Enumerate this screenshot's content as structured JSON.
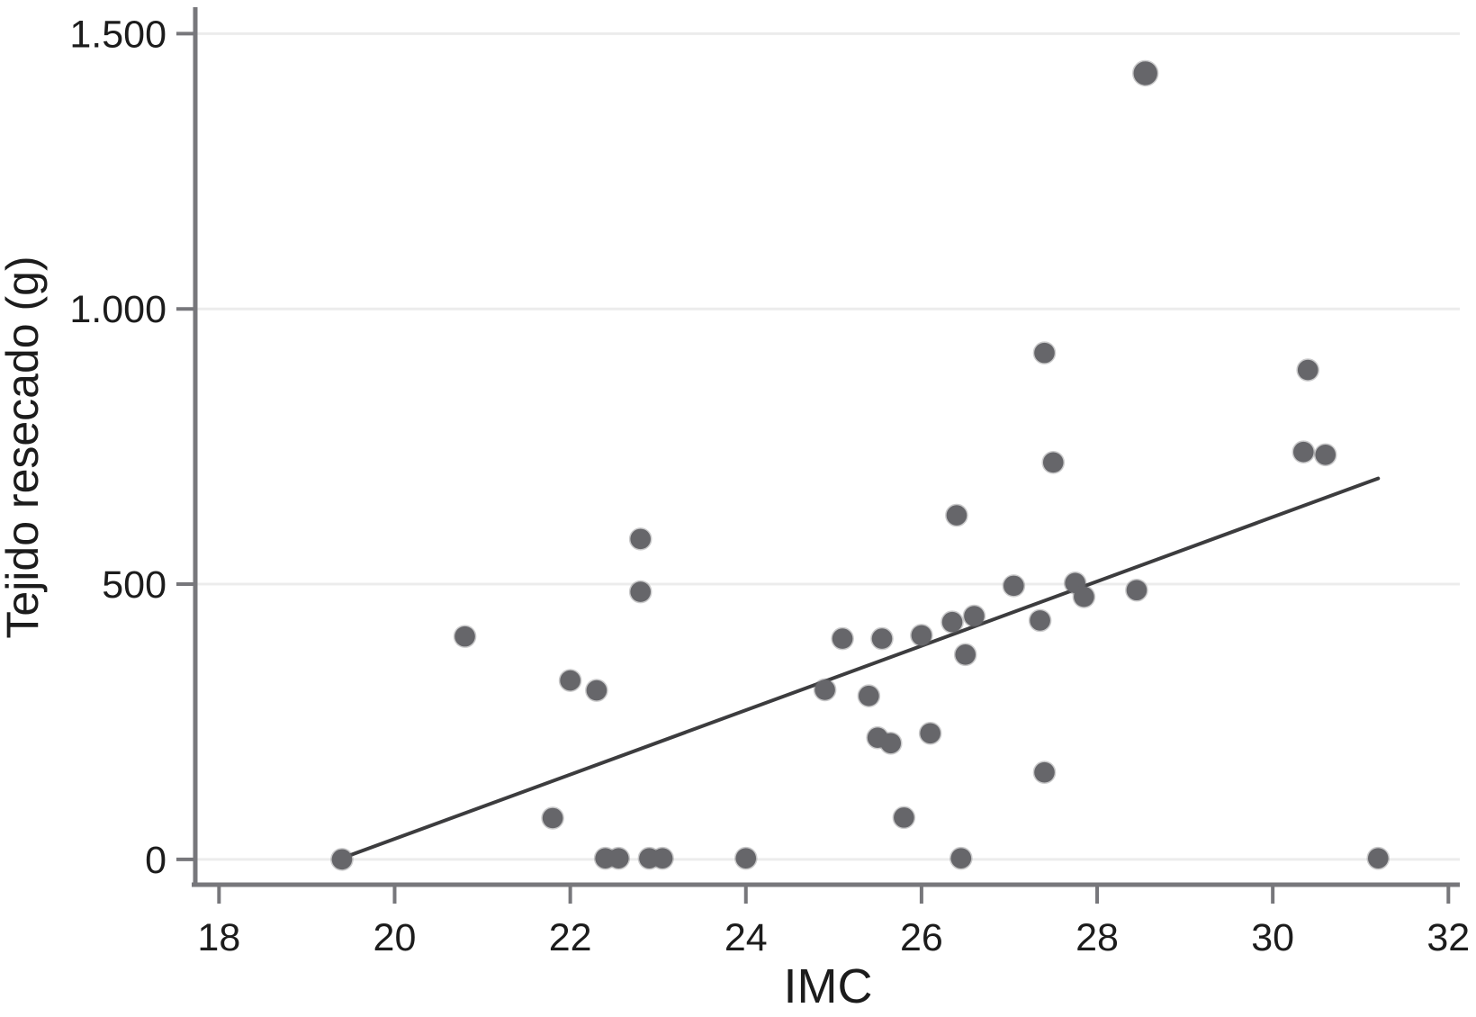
{
  "chart_data": {
    "type": "scatter",
    "title": "",
    "xlabel": "IMC",
    "ylabel": "Tejido resecado (g)",
    "xlim": [
      17.73,
      32.13
    ],
    "ylim": [
      -46,
      1548
    ],
    "grid": "horizontal",
    "legend": "none",
    "x_ticks": [
      {
        "value": 18,
        "label": "18"
      },
      {
        "value": 20,
        "label": "20"
      },
      {
        "value": 22,
        "label": "22"
      },
      {
        "value": 24,
        "label": "24"
      },
      {
        "value": 26,
        "label": "26"
      },
      {
        "value": 28,
        "label": "28"
      },
      {
        "value": 30,
        "label": "30"
      },
      {
        "value": 32,
        "label": "32"
      }
    ],
    "y_ticks": [
      {
        "value": 0,
        "label": "0"
      },
      {
        "value": 500,
        "label": "500"
      },
      {
        "value": 1000,
        "label": "1.000"
      },
      {
        "value": 1500,
        "label": "1.500"
      }
    ],
    "points": [
      [
        19.4,
        0
      ],
      [
        20.8,
        405
      ],
      [
        21.8,
        75
      ],
      [
        22.0,
        325
      ],
      [
        22.3,
        307
      ],
      [
        22.4,
        2
      ],
      [
        22.55,
        2
      ],
      [
        22.8,
        582
      ],
      [
        22.8,
        486
      ],
      [
        22.9,
        2
      ],
      [
        23.05,
        2
      ],
      [
        24.0,
        2
      ],
      [
        24.9,
        308
      ],
      [
        25.1,
        401
      ],
      [
        25.4,
        297
      ],
      [
        25.5,
        221
      ],
      [
        25.65,
        211
      ],
      [
        25.55,
        401
      ],
      [
        25.8,
        76
      ],
      [
        26.0,
        407
      ],
      [
        26.1,
        229
      ],
      [
        26.35,
        431
      ],
      [
        26.4,
        625
      ],
      [
        26.45,
        2
      ],
      [
        26.5,
        372
      ],
      [
        26.6,
        442
      ],
      [
        27.05,
        497
      ],
      [
        27.35,
        434
      ],
      [
        27.4,
        920
      ],
      [
        27.4,
        158
      ],
      [
        27.5,
        721
      ],
      [
        27.75,
        502
      ],
      [
        27.85,
        477
      ],
      [
        28.45,
        489
      ],
      [
        28.55,
        1428
      ],
      [
        30.35,
        740
      ],
      [
        30.4,
        889
      ],
      [
        30.6,
        735
      ],
      [
        31.2,
        2
      ]
    ],
    "trend_line": {
      "x1": 19.45,
      "y1": 5,
      "x2": 31.2,
      "y2": 692
    },
    "marker": {
      "radius": 11.3,
      "big_point_radius": 13.2
    },
    "colors": {
      "marker": "#66666a",
      "trend_line": "#3c3c3e",
      "axis": "#77777b",
      "grid": "#ececec",
      "text": "#1c1c1c"
    }
  }
}
